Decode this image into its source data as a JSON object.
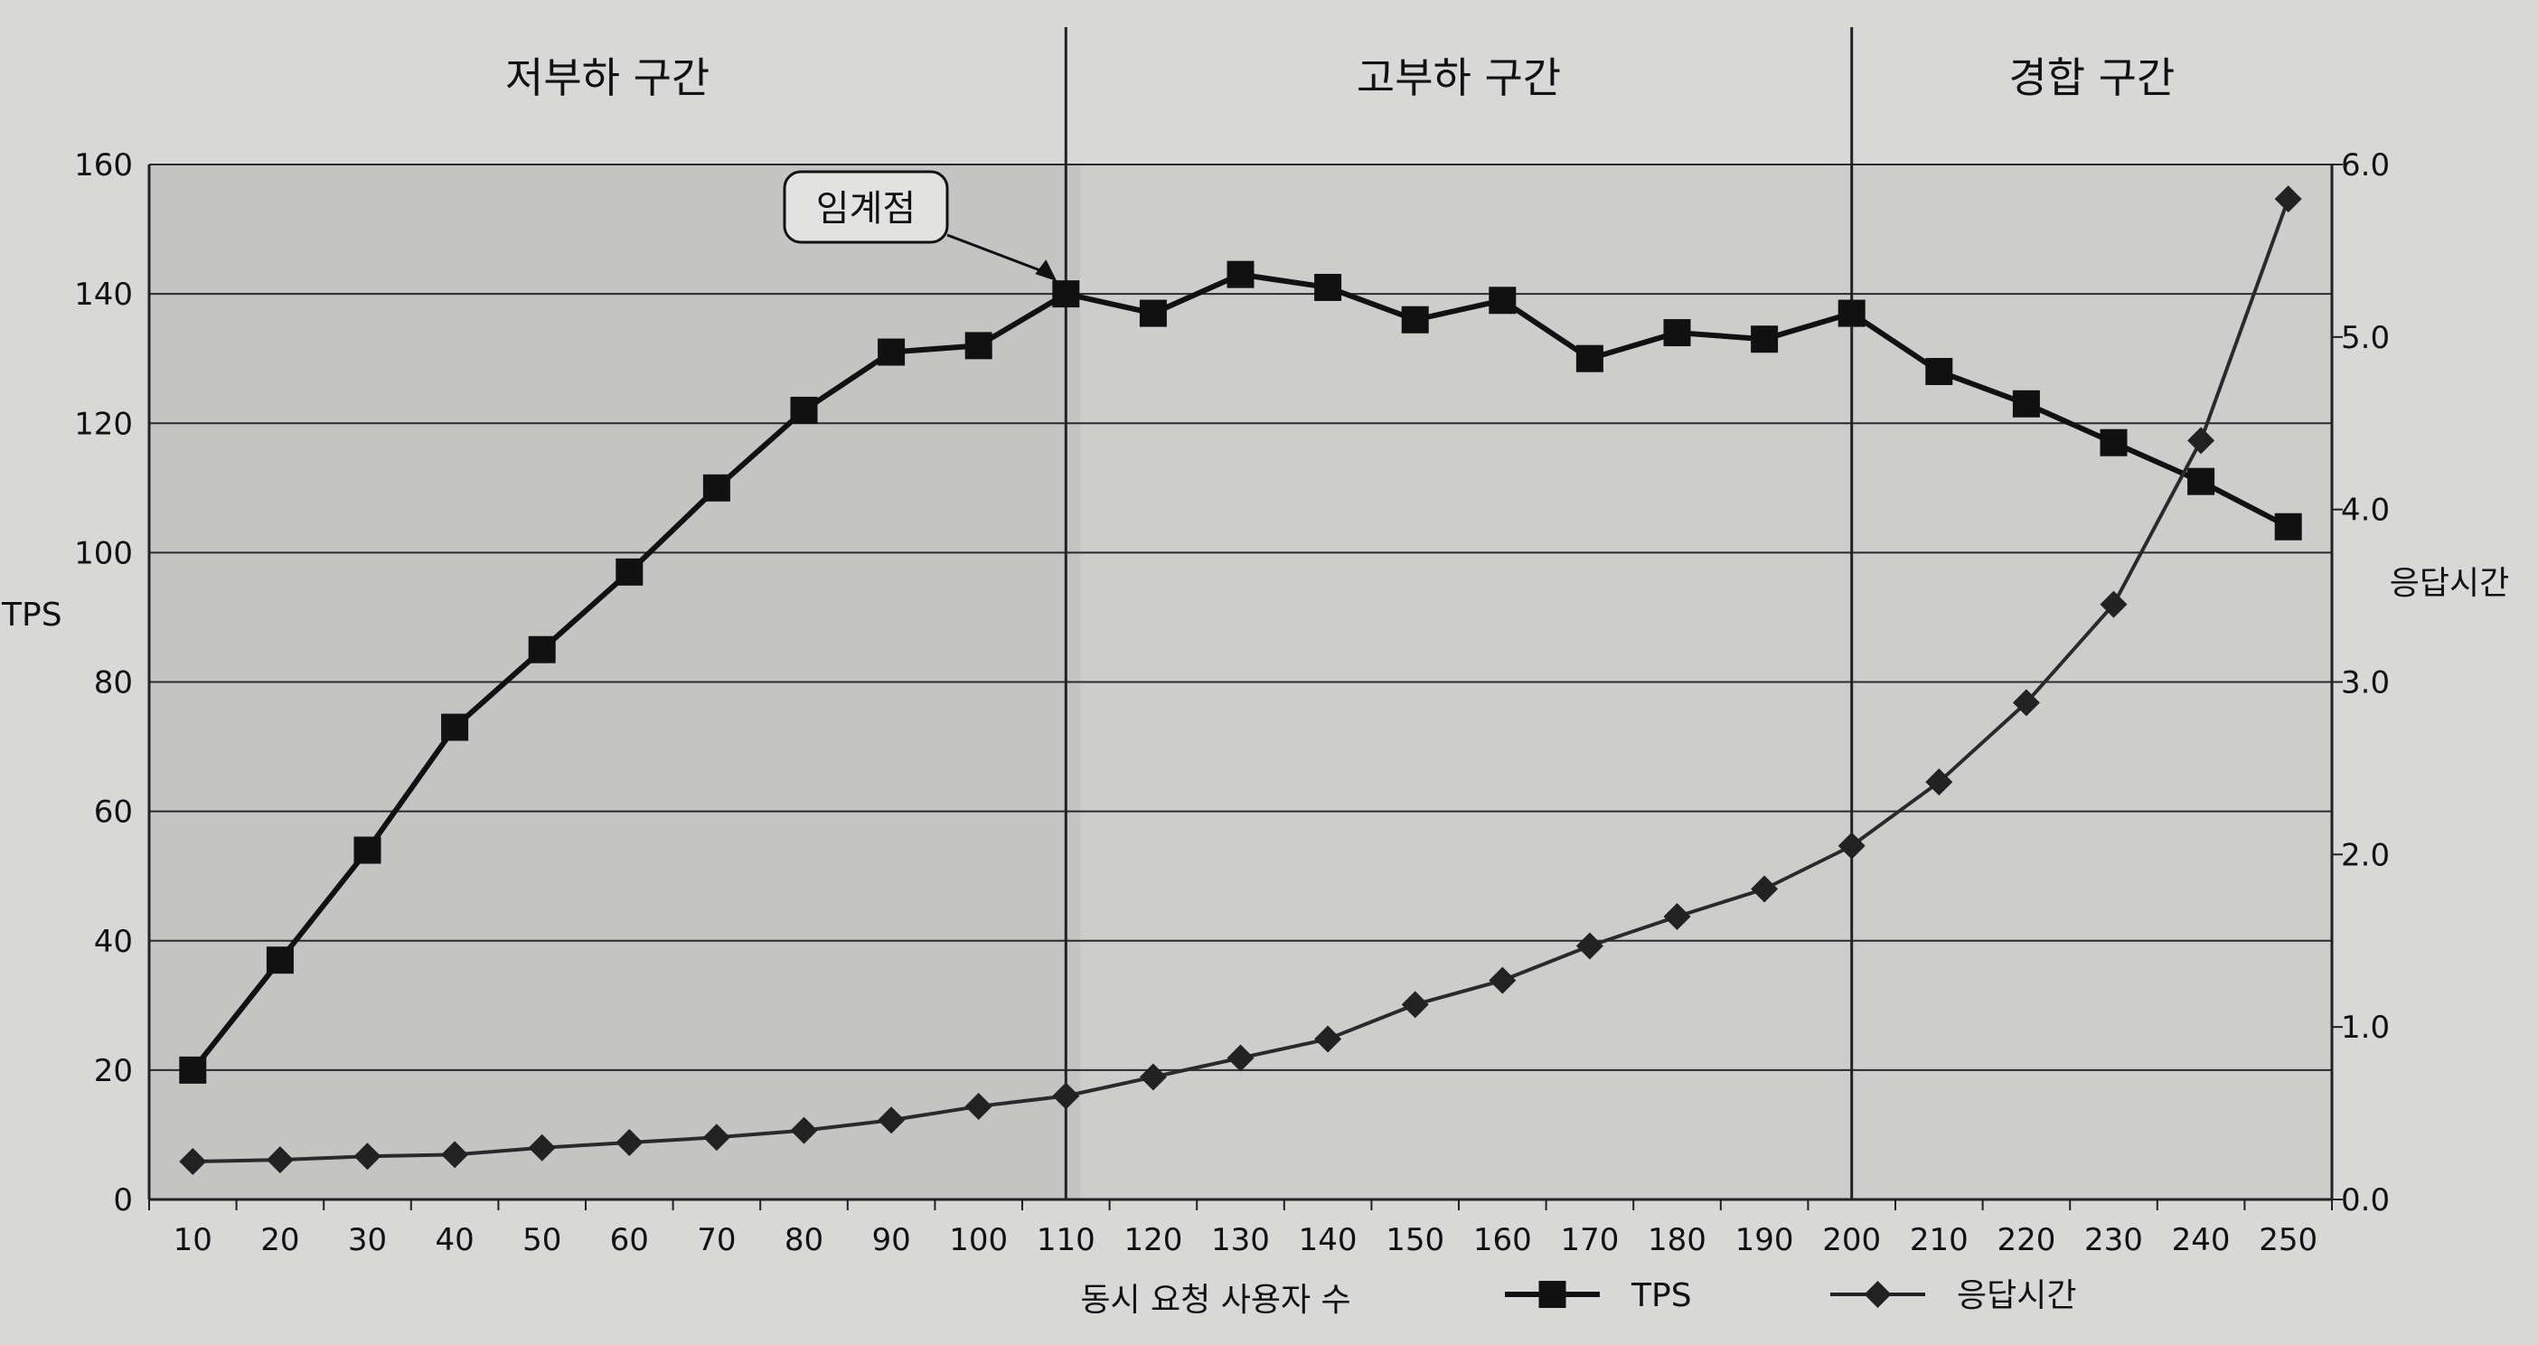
{
  "chart_data": {
    "type": "line",
    "xlabel": "동시 요청 사용자 수",
    "ylabel_left": "TPS",
    "ylabel_right": "응답시간",
    "categories": [
      "10",
      "20",
      "30",
      "40",
      "50",
      "60",
      "70",
      "80",
      "90",
      "100",
      "110",
      "120",
      "130",
      "140",
      "150",
      "160",
      "170",
      "180",
      "190",
      "200",
      "210",
      "220",
      "230",
      "240",
      "250"
    ],
    "ylim_left": [
      0,
      160
    ],
    "yticks_left": [
      "0",
      "20",
      "40",
      "60",
      "80",
      "100",
      "120",
      "140",
      "160"
    ],
    "ylim_right": [
      0,
      6.0
    ],
    "yticks_right": [
      "0.0",
      "1.0",
      "2.0",
      "3.0",
      "4.0",
      "5.0",
      "6.0"
    ],
    "grid": "horizontal",
    "legend_position": "bottom",
    "series": [
      {
        "name": "TPS",
        "axis": "left",
        "marker": "square",
        "values": [
          20,
          37,
          54,
          73,
          85,
          97,
          110,
          122,
          131,
          132,
          140,
          137,
          143,
          141,
          136,
          139,
          130,
          134,
          133,
          137,
          128,
          123,
          117,
          111,
          104
        ]
      },
      {
        "name": "응답시간",
        "axis": "right",
        "marker": "diamond",
        "values": [
          0.22,
          0.23,
          0.25,
          0.26,
          0.3,
          0.33,
          0.36,
          0.4,
          0.46,
          0.54,
          0.6,
          0.71,
          0.82,
          0.93,
          1.13,
          1.27,
          1.47,
          1.64,
          1.8,
          2.05,
          2.42,
          2.88,
          3.45,
          4.4,
          5.8
        ]
      }
    ],
    "zones": [
      {
        "label": "저부하 구간",
        "start": 0,
        "end": 10
      },
      {
        "label": "고부하 구간",
        "start": 10,
        "end": 19
      },
      {
        "label": "경합 구간",
        "start": 19,
        "end": 24
      }
    ],
    "annotations": [
      {
        "text": "임계점",
        "series": "TPS",
        "index": 10
      }
    ]
  }
}
